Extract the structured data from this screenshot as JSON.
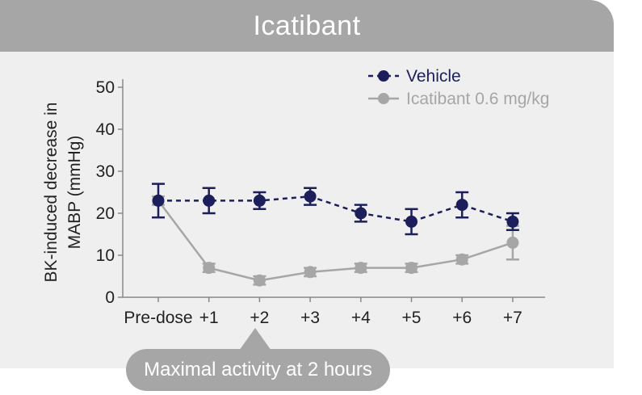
{
  "title": "Icatibant",
  "callout": "Maximal activity at 2 hours",
  "colors": {
    "vehicle": "#1c1f5c",
    "icatibant": "#a6a6a6",
    "axis": "#888888"
  },
  "chart_data": {
    "type": "line",
    "title": "Icatibant",
    "xlabel": "",
    "ylabel": "BK-induced decrease in MABP (mmHg)",
    "ylabel_lines": [
      "BK-induced decrease in",
      "MABP (mmHg)"
    ],
    "categories": [
      "Pre-dose",
      "+1",
      "+2",
      "+3",
      "+4",
      "+5",
      "+6",
      "+7"
    ],
    "ylim": [
      0,
      50
    ],
    "yticks": [
      0,
      10,
      20,
      30,
      40,
      50
    ],
    "legend_position": "top-right",
    "grid": false,
    "series": [
      {
        "name": "Vehicle",
        "style": "dashed",
        "color": "#1c1f5c",
        "values": [
          23,
          23,
          23,
          24,
          20,
          18,
          22,
          18
        ],
        "errors": [
          4,
          3,
          2,
          2,
          2,
          3,
          3,
          2
        ]
      },
      {
        "name": "Icatibant 0.6 mg/kg",
        "style": "solid",
        "color": "#a6a6a6",
        "values": [
          23,
          7,
          4,
          6,
          7,
          7,
          9,
          13
        ],
        "errors": [
          1,
          1,
          1,
          1,
          1,
          1,
          1,
          4
        ]
      }
    ]
  }
}
